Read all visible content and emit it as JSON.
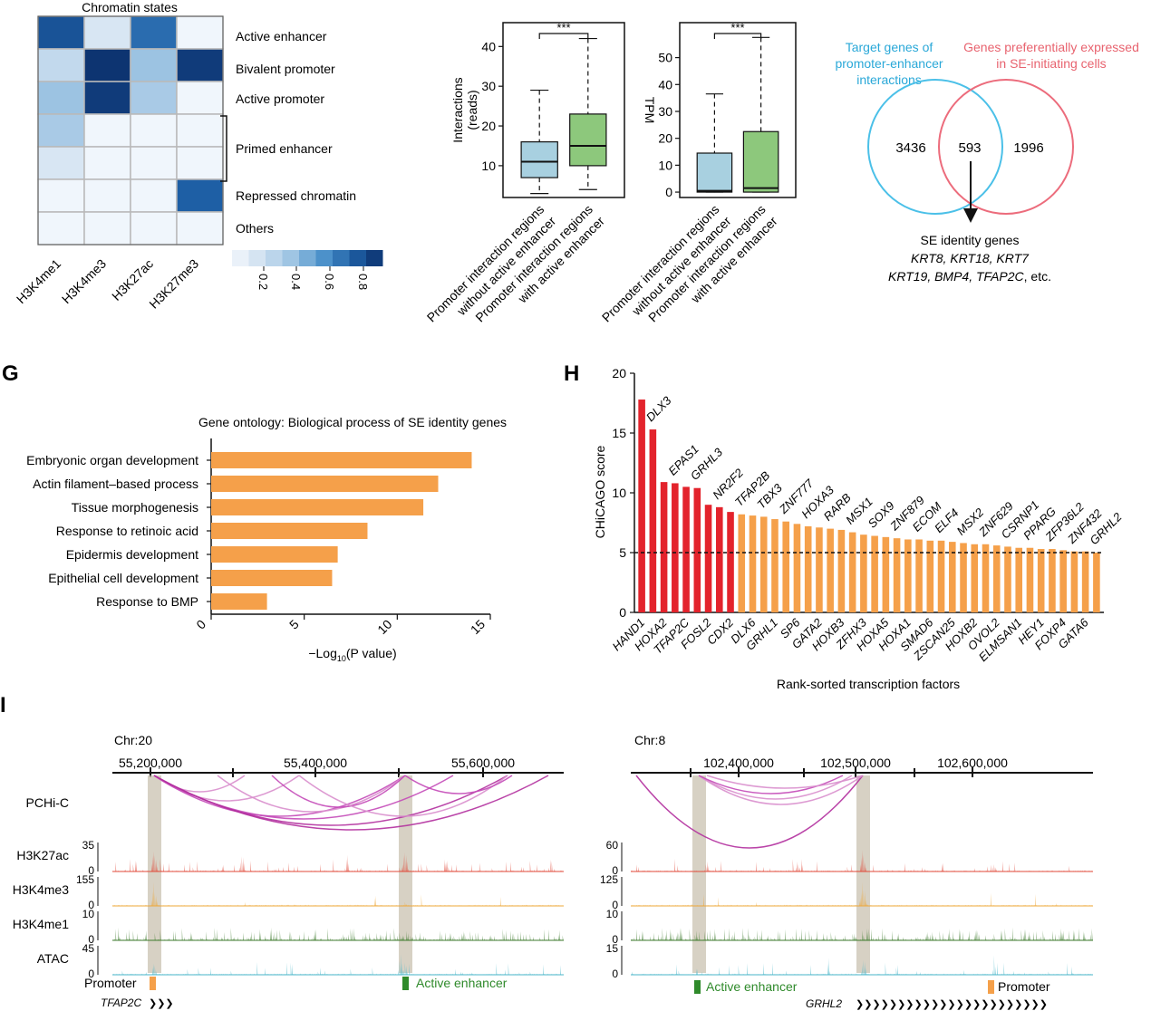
{
  "chromatin": {
    "title": "Chromatin states",
    "marks": [
      "H3K4me1",
      "H3K4me3",
      "H3K27ac",
      "H3K27me3"
    ],
    "states": [
      "Active enhancer",
      "Bivalent promoter",
      "Active promoter",
      "Primed enhancer",
      "",
      "Repressed chromatin",
      "Others"
    ],
    "matrix": [
      [
        0.85,
        0.15,
        0.75,
        0.02
      ],
      [
        0.25,
        0.98,
        0.4,
        0.95
      ],
      [
        0.4,
        0.95,
        0.35,
        0.02
      ],
      [
        0.35,
        0.02,
        0.02,
        0.02
      ],
      [
        0.15,
        0.02,
        0.02,
        0.02
      ],
      [
        0.02,
        0.02,
        0.02,
        0.8
      ],
      [
        0.02,
        0.02,
        0.02,
        0.02
      ]
    ],
    "colorbar_ticks": [
      "0.2",
      "0.4",
      "0.6",
      "0.8"
    ],
    "low_color": "#f4f8fd",
    "high_color": "#0b2f6b"
  },
  "box_interactions": {
    "ylabel_line1": "Interactions",
    "ylabel_line2": "(reads)",
    "yticks": [
      10,
      20,
      30,
      40
    ],
    "ylim": [
      2,
      46
    ],
    "significance": "***",
    "groups": [
      {
        "label_line1": "Promoter interaction regions",
        "label_line2": "without active enhancer",
        "color": "#a8d0e0",
        "min": 3,
        "q1": 7,
        "median": 11,
        "q3": 16,
        "max": 29
      },
      {
        "label_line1": "Promoter interaction regions",
        "label_line2": "with active enhancer",
        "color": "#8dc87c",
        "min": 4,
        "q1": 10,
        "median": 15,
        "q3": 23,
        "max": 42
      }
    ]
  },
  "box_tpm": {
    "ylabel": "TPM",
    "yticks": [
      0,
      10,
      20,
      30,
      40,
      50
    ],
    "ylim": [
      -2,
      63
    ],
    "significance": "***",
    "groups": [
      {
        "label_line1": "Promoter interaction regions",
        "label_line2": "without active enhancer",
        "color": "#a8d0e0",
        "min": 0,
        "q1": 0,
        "median": 0.5,
        "q3": 14.5,
        "max": 36.5
      },
      {
        "label_line1": "Promoter interaction regions",
        "label_line2": "with active enhancer",
        "color": "#8dc87c",
        "min": 0,
        "q1": 0,
        "median": 1.5,
        "q3": 22.5,
        "max": 57.5
      }
    ]
  },
  "venn": {
    "left_title": [
      "Target genes of",
      "promoter-enhancer",
      "interactions"
    ],
    "right_title": [
      "Genes preferentially expressed",
      "in SE-initiating cells"
    ],
    "left_only": "3436",
    "overlap": "593",
    "right_only": "1996",
    "left_color": "#4bc0e8",
    "right_color": "#ec6c7c",
    "identity_title": "SE identity genes",
    "identity_line1": "KRT8, KRT18, KRT7",
    "identity_line2a": "KRT19, BMP4, TFAP2C",
    "identity_line2b": ", etc."
  },
  "panel_labels": {
    "G": "G",
    "H": "H",
    "I": "I"
  },
  "go_chart": {
    "title": "Gene ontology: Biological process of SE identity genes",
    "xlabel_pre": "−Log",
    "xlabel_sub": "10",
    "xlabel_post": "(P value)",
    "xticks": [
      0,
      5,
      10,
      15
    ],
    "xlim": [
      0,
      15
    ],
    "bar_color": "#f5a04a",
    "categories": [
      "Embryonic organ development",
      "Actin filament–based process",
      "Tissue morphogenesis",
      "Response to retinoic acid",
      "Epidermis development",
      "Epithelial cell development",
      "Response to BMP"
    ],
    "values": [
      14.0,
      12.2,
      11.4,
      8.4,
      6.8,
      6.5,
      3.0
    ]
  },
  "chart_data": [
    {
      "type": "bar",
      "title": "Gene ontology: Biological process of SE identity genes",
      "xlabel": "−Log10(P value)",
      "categories": [
        "Embryonic organ development",
        "Actin filament–based process",
        "Tissue morphogenesis",
        "Response to retinoic acid",
        "Epidermis development",
        "Epithelial cell development",
        "Response to BMP"
      ],
      "values": [
        14.0,
        12.2,
        11.4,
        8.4,
        6.8,
        6.5,
        3.0
      ],
      "xlim": [
        0,
        15
      ]
    },
    {
      "type": "bar",
      "xlabel": "Rank-sorted transcription factors",
      "ylabel": "CHiCAGO score",
      "ylim": [
        0,
        20
      ],
      "threshold": 5,
      "categories": [
        "HAND1",
        "DLX3",
        "HOXA2",
        "EPAS1",
        "TFAP2C",
        "GRHL3",
        "FOSL2",
        "NR2F2",
        "CDX2",
        "TFAP2B",
        "DLX6",
        "TBX3",
        "GRHL1",
        "ZNF777",
        "SP6",
        "HOXA3",
        "GATA2",
        "RARB",
        "HOXB3",
        "MSX1",
        "ZFHX3",
        "SOX9",
        "HOXA5",
        "ZNF879",
        "HOXA1",
        "ECOM",
        "SMAD6",
        "ELF4",
        "ZSCAN25",
        "MSX2",
        "HOXB2",
        "ZNF629",
        "OVOL2",
        "CSRNP1",
        "ELMSAN1",
        "PPARG",
        "HEY1",
        "ZFP36L2",
        "FOXP4",
        "ZNF432",
        "GATA6",
        "GRHL2"
      ],
      "values": [
        17.8,
        15.3,
        10.9,
        10.8,
        10.5,
        10.4,
        9.0,
        8.8,
        8.4,
        8.2,
        8.1,
        8.0,
        7.8,
        7.6,
        7.4,
        7.2,
        7.1,
        7.0,
        6.9,
        6.7,
        6.5,
        6.4,
        6.3,
        6.2,
        6.1,
        6.1,
        6.0,
        6.0,
        5.9,
        5.8,
        5.7,
        5.7,
        5.6,
        5.5,
        5.4,
        5.4,
        5.3,
        5.3,
        5.2,
        5.1,
        5.1,
        5.0
      ]
    }
  ],
  "tf_chart": {
    "ylabel": "CHiCAGO score",
    "xlabel": "Rank-sorted transcription factors",
    "yticks": [
      0,
      5,
      10,
      15,
      20
    ],
    "ylim": [
      0,
      20
    ],
    "threshold": 5,
    "red_count": 9,
    "red_color": "#e3232c",
    "orange_color": "#f5a04a"
  },
  "tracks_left": {
    "chrom": "Chr:20",
    "coords": [
      "55,200,000",
      "55,400,000",
      "55,600,000"
    ],
    "tracks": [
      {
        "name": "PCHi-C",
        "max": ""
      },
      {
        "name": "H3K27ac",
        "max": "35",
        "color": "#e04a3a"
      },
      {
        "name": "H3K4me3",
        "max": "155",
        "color": "#eea83a"
      },
      {
        "name": "H3K4me1",
        "max": "10",
        "color": "#3d7a2c"
      },
      {
        "name": "ATAC",
        "max": "45",
        "color": "#49b6c9"
      }
    ],
    "zero": "0",
    "promoter_label": "Promoter",
    "enhancer_label": "Active enhancer",
    "gene": "TFAP2C",
    "gene_arrows": "❯❯❯"
  },
  "tracks_right": {
    "chrom": "Chr:8",
    "coords": [
      "102,400,000",
      "102,500,000",
      "102,600,000"
    ],
    "track_max": [
      "60",
      "125",
      "10",
      "15"
    ],
    "zero": "0",
    "enhancer_label": "Active enhancer",
    "promoter_label": "Promoter",
    "gene": "GRHL2",
    "gene_arrows": "❯❯❯❯❯❯❯❯❯❯❯❯❯❯❯❯❯❯❯❯❯❯❯"
  }
}
